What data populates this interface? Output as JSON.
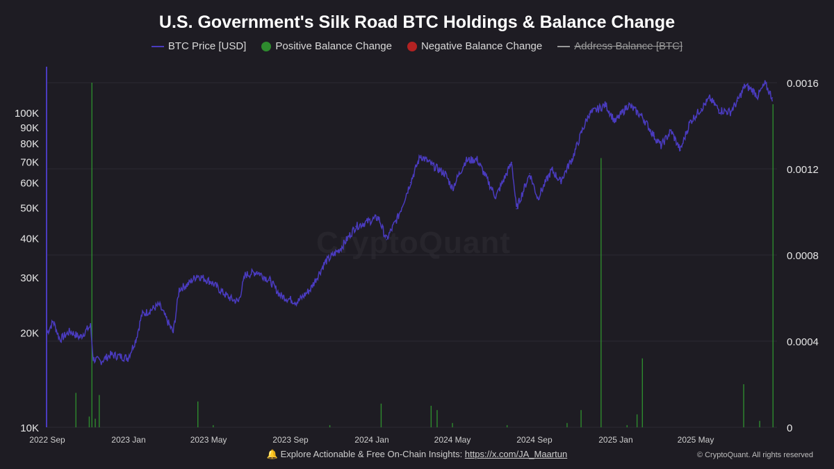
{
  "chart_data": {
    "type": "line",
    "title": "U.S. Government's Silk Road BTC Holdings & Balance Change",
    "legend": {
      "placement": "top-center",
      "entries": [
        {
          "label": "BTC Price [USD]",
          "color": "#4a3bbf",
          "marker": "line",
          "active": true
        },
        {
          "label": "Positive Balance Change",
          "color": "#2e8b2e",
          "marker": "dot",
          "active": true
        },
        {
          "label": "Negative Balance Change",
          "color": "#b22222",
          "marker": "dot",
          "active": true
        },
        {
          "label": "Address Balance [BTC]",
          "color": "#9a9a9a",
          "marker": "line",
          "active": false
        }
      ]
    },
    "x_axis": {
      "ticks": [
        "2022 Sep",
        "2023 Jan",
        "2023 May",
        "2023 Sep",
        "2024 Jan",
        "2024 May",
        "2024 Sep",
        "2025 Jan",
        "2025 May"
      ],
      "range": [
        "2022-09-01",
        "2025-08-31"
      ]
    },
    "y_left": {
      "scale": "log",
      "range": [
        10000,
        140000
      ],
      "tick_values": [
        10000,
        20000,
        30000,
        40000,
        50000,
        60000,
        70000,
        80000,
        90000,
        100000
      ],
      "tick_labels": [
        "10K",
        "20K",
        "30K",
        "40K",
        "50K",
        "60K",
        "70K",
        "80K",
        "90K",
        "100K"
      ]
    },
    "y_right": {
      "scale": "linear",
      "range": [
        0,
        0.0016
      ],
      "tick_values": [
        0,
        0.0004,
        0.0008,
        0.0012,
        0.0016
      ],
      "tick_labels": [
        "0",
        "0.0004",
        "0.0008",
        "0.0012",
        "0.0016"
      ]
    },
    "grid": "horizontal",
    "series": [
      {
        "name": "BTC Price [USD]",
        "color": "#4a3bbf",
        "points": [
          [
            "2022-09-01",
            20000
          ],
          [
            "2022-09-10",
            21700
          ],
          [
            "2022-09-20",
            19000
          ],
          [
            "2022-10-05",
            20200
          ],
          [
            "2022-10-20",
            19300
          ],
          [
            "2022-10-31",
            20500
          ],
          [
            "2022-11-05",
            21000
          ],
          [
            "2022-11-09",
            16500
          ],
          [
            "2022-11-20",
            16200
          ],
          [
            "2022-12-05",
            17000
          ],
          [
            "2022-12-20",
            16800
          ],
          [
            "2022-12-31",
            16600
          ],
          [
            "2023-01-12",
            19000
          ],
          [
            "2023-01-21",
            22800
          ],
          [
            "2023-02-02",
            23500
          ],
          [
            "2023-02-16",
            24500
          ],
          [
            "2023-03-09",
            20000
          ],
          [
            "2023-03-18",
            27500
          ],
          [
            "2023-03-31",
            28500
          ],
          [
            "2023-04-14",
            30400
          ],
          [
            "2023-05-05",
            29000
          ],
          [
            "2023-05-25",
            26500
          ],
          [
            "2023-06-05",
            25500
          ],
          [
            "2023-06-15",
            25100
          ],
          [
            "2023-06-25",
            30500
          ],
          [
            "2023-07-13",
            31200
          ],
          [
            "2023-08-01",
            29300
          ],
          [
            "2023-08-17",
            26200
          ],
          [
            "2023-09-11",
            25000
          ],
          [
            "2023-10-01",
            27500
          ],
          [
            "2023-10-23",
            33500
          ],
          [
            "2023-11-15",
            37000
          ],
          [
            "2023-12-08",
            43500
          ],
          [
            "2024-01-11",
            46500
          ],
          [
            "2024-01-23",
            39500
          ],
          [
            "2024-02-10",
            47000
          ],
          [
            "2024-02-28",
            60000
          ],
          [
            "2024-03-14",
            73000
          ],
          [
            "2024-04-01",
            68000
          ],
          [
            "2024-04-20",
            64000
          ],
          [
            "2024-05-01",
            57500
          ],
          [
            "2024-05-21",
            70500
          ],
          [
            "2024-06-07",
            71000
          ],
          [
            "2024-07-05",
            54000
          ],
          [
            "2024-07-29",
            69500
          ],
          [
            "2024-08-05",
            49500
          ],
          [
            "2024-08-25",
            64000
          ],
          [
            "2024-09-06",
            53500
          ],
          [
            "2024-09-27",
            65800
          ],
          [
            "2024-10-10",
            60500
          ],
          [
            "2024-10-29",
            72500
          ],
          [
            "2024-11-12",
            88000
          ],
          [
            "2024-11-22",
            99000
          ],
          [
            "2024-12-17",
            106000
          ],
          [
            "2024-12-31",
            93500
          ],
          [
            "2025-01-20",
            106000
          ],
          [
            "2025-02-10",
            97000
          ],
          [
            "2025-02-28",
            84000
          ],
          [
            "2025-03-10",
            78500
          ],
          [
            "2025-03-25",
            87500
          ],
          [
            "2025-04-08",
            76000
          ],
          [
            "2025-04-22",
            93000
          ],
          [
            "2025-05-09",
            103000
          ],
          [
            "2025-05-22",
            111000
          ],
          [
            "2025-06-05",
            102000
          ],
          [
            "2025-06-22",
            100500
          ],
          [
            "2025-07-03",
            109000
          ],
          [
            "2025-07-14",
            122000
          ],
          [
            "2025-07-25",
            118000
          ],
          [
            "2025-08-02",
            113000
          ],
          [
            "2025-08-13",
            123500
          ],
          [
            "2025-08-24",
            111500
          ]
        ]
      },
      {
        "name": "Positive Balance Change",
        "color": "#2e8b2e",
        "axis": "right",
        "type": "bar",
        "points": [
          [
            "2022-10-14",
            0.00016
          ],
          [
            "2022-11-07",
            0.0016
          ],
          [
            "2022-11-03",
            5e-05
          ],
          [
            "2022-11-12",
            4e-05
          ],
          [
            "2022-11-18",
            0.00015
          ],
          [
            "2023-04-15",
            0.00012
          ],
          [
            "2023-05-08",
            1e-05
          ],
          [
            "2023-10-30",
            1e-05
          ],
          [
            "2024-01-15",
            0.00011
          ],
          [
            "2024-03-30",
            0.0001
          ],
          [
            "2024-04-08",
            8e-05
          ],
          [
            "2024-05-01",
            2e-05
          ],
          [
            "2024-07-22",
            1e-05
          ],
          [
            "2024-10-20",
            2e-05
          ],
          [
            "2024-11-10",
            8e-05
          ],
          [
            "2024-12-10",
            0.00125
          ],
          [
            "2025-01-18",
            1e-05
          ],
          [
            "2025-02-10",
            0.00032
          ],
          [
            "2025-02-02",
            6e-05
          ],
          [
            "2025-07-12",
            0.0002
          ],
          [
            "2025-08-05",
            3e-05
          ],
          [
            "2025-08-25",
            0.0015
          ]
        ]
      }
    ]
  },
  "watermark": "CryptoQuant",
  "footer": {
    "icon": "bell-icon",
    "text": "Explore Actionable & Free On-Chain Insights: ",
    "link": "https://x.com/JA_Maartun",
    "copyright": "© CryptoQuant. All rights reserved"
  }
}
